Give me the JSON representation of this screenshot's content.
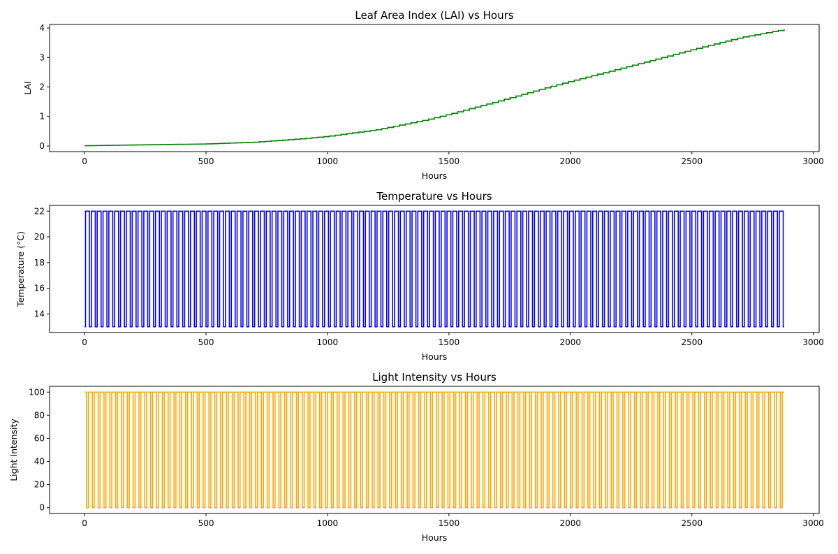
{
  "chart_data": [
    {
      "type": "line",
      "title": "Leaf Area Index (LAI) vs Hours",
      "xlabel": "Hours",
      "ylabel": "LAI",
      "xlim": [
        -144,
        3024
      ],
      "ylim": [
        -0.19,
        4.12
      ],
      "xticks": [
        0,
        500,
        1000,
        1500,
        2000,
        2500,
        3000
      ],
      "yticks": [
        0,
        1,
        2,
        3,
        4
      ],
      "grid": false,
      "color": "#008000",
      "step": true,
      "series": [
        {
          "x": [
            0,
            500,
            700,
            900,
            1000,
            1200,
            1400,
            1500,
            1700,
            1900,
            2000,
            2200,
            2400,
            2500,
            2700,
            2880
          ],
          "values": [
            0.01,
            0.07,
            0.13,
            0.25,
            0.33,
            0.55,
            0.88,
            1.08,
            1.52,
            1.98,
            2.2,
            2.62,
            3.05,
            3.27,
            3.68,
            3.95
          ]
        }
      ]
    },
    {
      "type": "line",
      "title": "Temperature vs Hours",
      "xlabel": "Hours",
      "ylabel": "Temperature (°C)",
      "xlim": [
        -144,
        3024
      ],
      "ylim": [
        12.55,
        22.45
      ],
      "xticks": [
        0,
        500,
        1000,
        1500,
        2000,
        2500,
        3000
      ],
      "yticks": [
        14,
        16,
        18,
        20,
        22
      ],
      "grid": false,
      "color": "#0000ff",
      "series": [
        {
          "pattern": "square-wave",
          "period_hours": 24,
          "high_hours": 16,
          "high": 22,
          "low": 13,
          "start_value": 13,
          "x_range": [
            0,
            2880
          ]
        }
      ]
    },
    {
      "type": "line",
      "title": "Light Intensity vs Hours",
      "xlabel": "Hours",
      "ylabel": "Light Intensity",
      "xlim": [
        -144,
        3024
      ],
      "ylim": [
        -5,
        105
      ],
      "xticks": [
        0,
        500,
        1000,
        1500,
        2000,
        2500,
        3000
      ],
      "yticks": [
        0,
        20,
        40,
        60,
        80,
        100
      ],
      "grid": false,
      "color": "#ffa500",
      "series": [
        {
          "pattern": "square-wave",
          "period_hours": 24,
          "high_hours": 16,
          "high": 100,
          "low": 0,
          "start_value": 100,
          "x_range": [
            0,
            2880
          ]
        }
      ]
    }
  ]
}
